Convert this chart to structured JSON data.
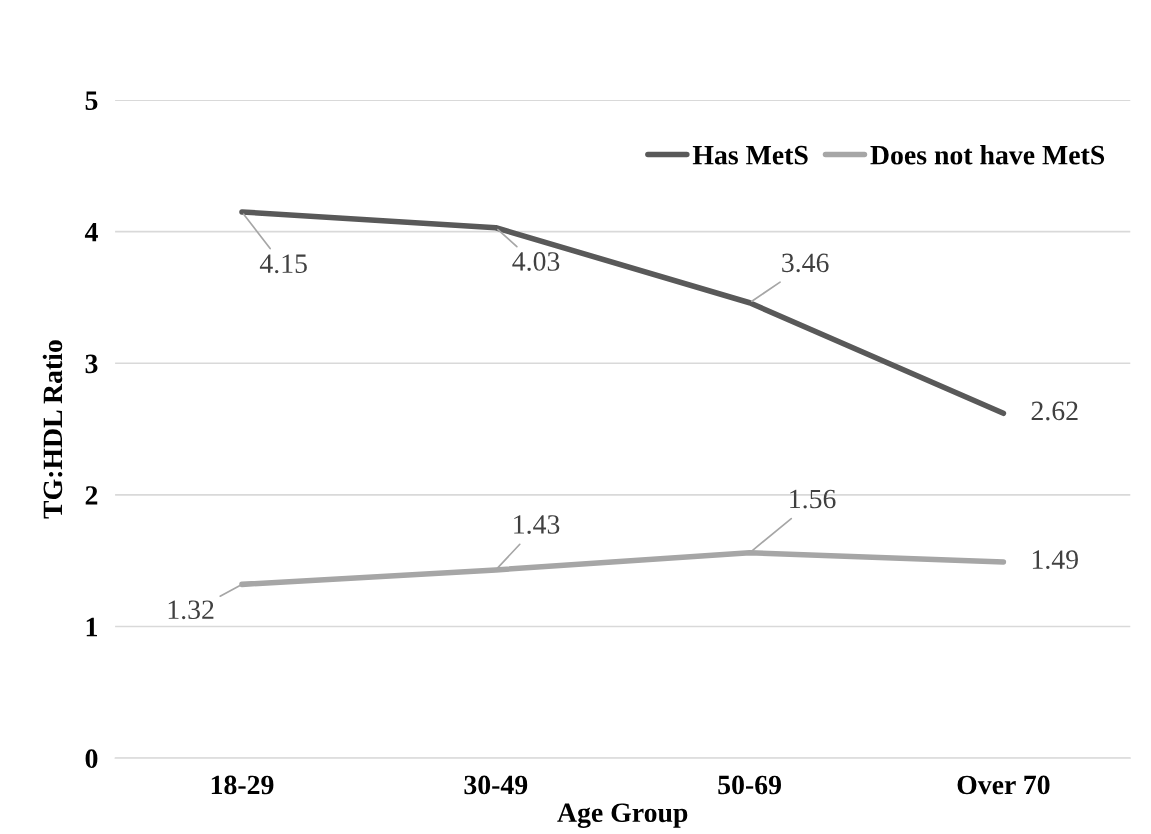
{
  "chart_data": {
    "type": "line",
    "xlabel": "Age Group",
    "ylabel": "TG:HDL Ratio",
    "categories": [
      "18-29",
      "30-49",
      "50-69",
      "Over 70"
    ],
    "series": [
      {
        "name": "Has MetS",
        "color": "#595959",
        "values": [
          4.15,
          4.03,
          3.46,
          2.62
        ]
      },
      {
        "name": "Does not have MetS",
        "color": "#a6a6a6",
        "values": [
          1.32,
          1.43,
          1.56,
          1.49
        ]
      }
    ],
    "ylim": [
      0,
      5
    ],
    "yticks": [
      0,
      1,
      2,
      3,
      4,
      5
    ],
    "grid": "y",
    "legend": "top right",
    "data_labels": true,
    "marker": "none",
    "line_style": "solid"
  }
}
